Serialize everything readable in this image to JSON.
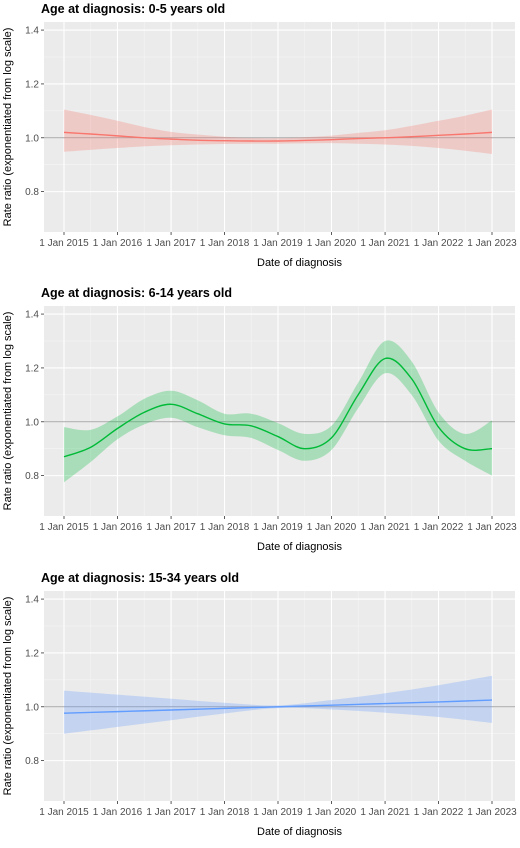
{
  "chart_data": [
    {
      "type": "line",
      "title": "Age at diagnosis: 0-5 years old",
      "xlabel": "Date of diagnosis",
      "ylabel": "Rate ratio (exponentiated from log scale)",
      "x_ticks": [
        "1 Jan 2015",
        "1 Jan 2016",
        "1 Jan 2017",
        "1 Jan 2018",
        "1 Jan 2019",
        "1 Jan 2020",
        "1 Jan 2021",
        "1 Jan 2022",
        "1 Jan 2023"
      ],
      "y_ticks": [
        "0.8",
        "1.0",
        "1.2",
        "1.4"
      ],
      "ylim": [
        0.65,
        1.43
      ],
      "reference_line": 1.0,
      "grid": true,
      "color": "#F8766D",
      "series": [
        {
          "x": [
            "2015-01-01",
            "2015-07-01",
            "2016-01-01",
            "2016-07-01",
            "2017-01-01",
            "2017-07-01",
            "2018-01-01",
            "2018-07-01",
            "2019-01-01",
            "2019-07-01",
            "2020-01-01",
            "2020-07-01",
            "2021-01-01",
            "2021-07-01",
            "2022-01-01",
            "2022-07-01",
            "2023-01-01"
          ],
          "estimate": [
            1.02,
            1.014,
            1.007,
            1.0,
            0.995,
            0.991,
            0.989,
            0.988,
            0.988,
            0.99,
            0.993,
            0.997,
            1.0,
            1.004,
            1.009,
            1.014,
            1.02
          ],
          "lower": [
            0.948,
            0.955,
            0.962,
            0.968,
            0.972,
            0.975,
            0.977,
            0.978,
            0.978,
            0.979,
            0.98,
            0.978,
            0.975,
            0.97,
            0.962,
            0.952,
            0.94
          ],
          "upper": [
            1.105,
            1.085,
            1.063,
            1.04,
            1.022,
            1.012,
            1.004,
            0.999,
            0.998,
            1.002,
            1.008,
            1.018,
            1.028,
            1.044,
            1.063,
            1.082,
            1.105
          ]
        }
      ]
    },
    {
      "type": "line",
      "title": "Age at diagnosis: 6-14 years old",
      "xlabel": "Date of diagnosis",
      "ylabel": "Rate ratio (exponentiated from log scale)",
      "x_ticks": [
        "1 Jan 2015",
        "1 Jan 2016",
        "1 Jan 2017",
        "1 Jan 2018",
        "1 Jan 2019",
        "1 Jan 2020",
        "1 Jan 2021",
        "1 Jan 2022",
        "1 Jan 2023"
      ],
      "y_ticks": [
        "0.8",
        "1.0",
        "1.2",
        "1.4"
      ],
      "ylim": [
        0.65,
        1.43
      ],
      "reference_line": 1.0,
      "grid": true,
      "color": "#00BA38",
      "series": [
        {
          "x": [
            "2015-01-01",
            "2015-07-01",
            "2016-01-01",
            "2016-07-01",
            "2017-01-01",
            "2017-07-01",
            "2018-01-01",
            "2018-07-01",
            "2019-01-01",
            "2019-07-01",
            "2020-01-01",
            "2020-07-01",
            "2021-01-01",
            "2021-07-01",
            "2022-01-01",
            "2022-07-01",
            "2023-01-01"
          ],
          "estimate": [
            0.87,
            0.905,
            0.975,
            1.035,
            1.065,
            1.03,
            0.992,
            0.985,
            0.945,
            0.9,
            0.94,
            1.1,
            1.235,
            1.16,
            0.98,
            0.9,
            0.9
          ],
          "lower": [
            0.775,
            0.85,
            0.935,
            0.99,
            1.015,
            0.98,
            0.95,
            0.94,
            0.895,
            0.855,
            0.895,
            1.05,
            1.18,
            1.1,
            0.93,
            0.855,
            0.8
          ],
          "upper": [
            0.98,
            0.97,
            1.02,
            1.085,
            1.115,
            1.08,
            1.03,
            1.03,
            0.995,
            0.955,
            0.985,
            1.145,
            1.3,
            1.225,
            1.035,
            0.955,
            1.005
          ]
        }
      ]
    },
    {
      "type": "line",
      "title": "Age at diagnosis: 15-34 years old",
      "xlabel": "Date of diagnosis",
      "ylabel": "Rate ratio (exponentiated from log scale)",
      "x_ticks": [
        "1 Jan 2015",
        "1 Jan 2016",
        "1 Jan 2017",
        "1 Jan 2018",
        "1 Jan 2019",
        "1 Jan 2020",
        "1 Jan 2021",
        "1 Jan 2022",
        "1 Jan 2023"
      ],
      "y_ticks": [
        "0.8",
        "1.0",
        "1.2",
        "1.4"
      ],
      "ylim": [
        0.65,
        1.43
      ],
      "reference_line": 1.0,
      "grid": true,
      "color": "#619CFF",
      "series": [
        {
          "x": [
            "2015-01-01",
            "2016-01-01",
            "2017-01-01",
            "2018-01-01",
            "2019-01-01",
            "2020-01-01",
            "2021-01-01",
            "2022-01-01",
            "2023-01-01"
          ],
          "estimate": [
            0.976,
            0.982,
            0.988,
            0.994,
            1.0,
            1.006,
            1.012,
            1.018,
            1.025
          ],
          "lower": [
            0.9,
            0.925,
            0.95,
            0.975,
            0.995,
            0.99,
            0.978,
            0.962,
            0.94
          ],
          "upper": [
            1.06,
            1.045,
            1.03,
            1.015,
            1.005,
            1.025,
            1.05,
            1.08,
            1.115
          ]
        }
      ]
    }
  ]
}
